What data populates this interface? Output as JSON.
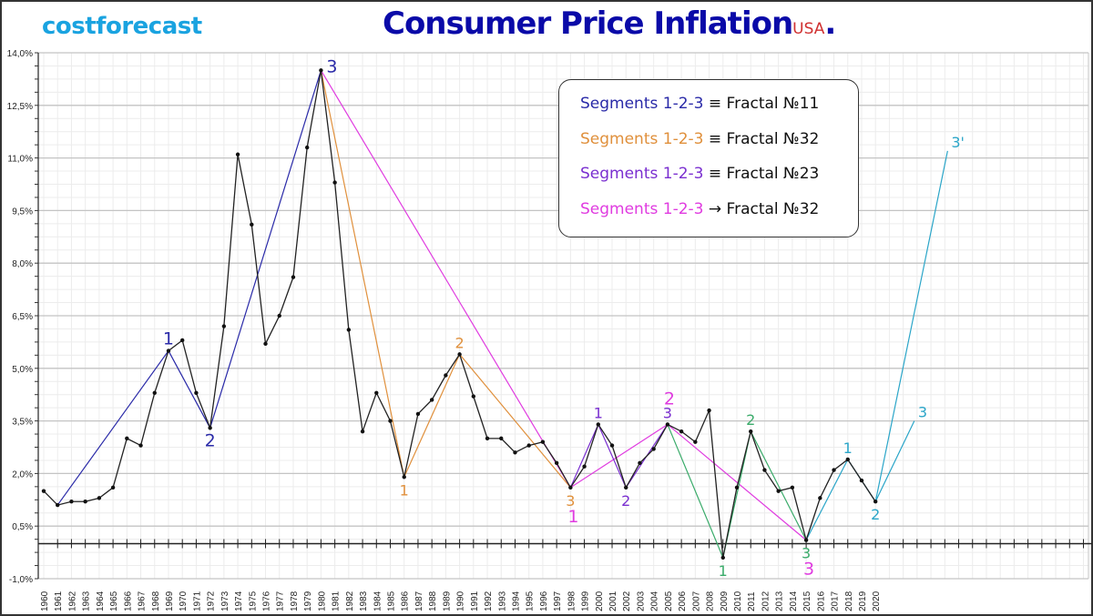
{
  "brand": "costforecast",
  "title": {
    "main": "Consumer Price Inflation",
    "suffix": "USA",
    "dot": "."
  },
  "legend": [
    {
      "segments": "Segments 1-2-3",
      "relation": " ≡ Fractal №11",
      "color": "#2a2aa8"
    },
    {
      "segments": "Segments 1-2-3",
      "relation": " ≡ Fractal №32",
      "color": "#e0903c"
    },
    {
      "segments": "Segments 1-2-3",
      "relation": " ≡ Fractal №23",
      "color": "#7a2fd0"
    },
    {
      "segments": "Segments 1-2-3",
      "relation": " → Fractal №32",
      "color": "#e03ce0"
    }
  ],
  "chart_data": {
    "type": "line",
    "title": "Consumer Price Inflation USA.",
    "ylim": [
      -1.0,
      14.0
    ],
    "yticks": [
      "14,0%",
      "12,5%",
      "11,0%",
      "9,5%",
      "8,0%",
      "6,5%",
      "5,0%",
      "3,5%",
      "2,0%",
      "0,5%",
      "-1,0%"
    ],
    "ytick_values": [
      14.0,
      12.5,
      11.0,
      9.5,
      8.0,
      6.5,
      5.0,
      3.5,
      2.0,
      0.5,
      -1.0
    ],
    "xlim": [
      1960,
      2035
    ],
    "grid": true,
    "series": [
      {
        "color": "#222222",
        "x": [
          1960,
          1961,
          1962,
          1963,
          1964,
          1965,
          1966,
          1967,
          1968,
          1969,
          1970,
          1971,
          1972,
          1973,
          1974,
          1975,
          1976,
          1977,
          1978,
          1979,
          1980,
          1981,
          1982,
          1983,
          1984,
          1985,
          1986,
          1987,
          1988,
          1989,
          1990,
          1991,
          1992,
          1993,
          1994,
          1995,
          1996,
          1997,
          1998,
          1999,
          2000,
          2001,
          2002,
          2003,
          2004,
          2005,
          2006,
          2007,
          2008,
          2009,
          2010,
          2011,
          2012,
          2013,
          2014,
          2015,
          2016,
          2017,
          2018,
          2019,
          2020
        ],
        "y": [
          1.5,
          1.1,
          1.2,
          1.2,
          1.3,
          1.6,
          3.0,
          2.8,
          4.3,
          5.5,
          5.8,
          4.3,
          3.3,
          6.2,
          11.1,
          9.1,
          5.7,
          6.5,
          7.6,
          11.3,
          13.5,
          10.3,
          6.1,
          3.2,
          4.3,
          3.5,
          1.9,
          3.7,
          4.1,
          4.8,
          5.4,
          4.2,
          3.0,
          3.0,
          2.6,
          2.8,
          2.9,
          2.3,
          1.6,
          2.2,
          3.4,
          2.8,
          1.6,
          2.3,
          2.7,
          3.4,
          3.2,
          2.9,
          3.8,
          -0.4,
          1.6,
          3.2,
          2.1,
          1.5,
          1.6,
          0.1,
          1.3,
          2.1,
          2.4,
          1.8,
          1.2
        ]
      }
    ],
    "overlays": [
      {
        "color": "#2a2aa8",
        "points": [
          [
            1961,
            1.1
          ],
          [
            1969,
            5.5
          ],
          [
            1972,
            3.3
          ],
          [
            1980,
            13.5
          ]
        ],
        "labels": [
          {
            "text": "1",
            "x": 1969,
            "y": 5.5,
            "pos": "above",
            "big": true
          },
          {
            "text": "2",
            "x": 1972,
            "y": 3.3,
            "pos": "below",
            "big": true
          },
          {
            "text": "3",
            "x": 1980,
            "y": 13.5,
            "pos": "right",
            "big": true
          }
        ]
      },
      {
        "color": "#e0903c",
        "points": [
          [
            1980,
            13.5
          ],
          [
            1986,
            1.9
          ],
          [
            1990,
            5.4
          ],
          [
            1998,
            1.6
          ]
        ],
        "labels": [
          {
            "text": "1",
            "x": 1986,
            "y": 1.9,
            "pos": "below"
          },
          {
            "text": "2",
            "x": 1990,
            "y": 5.4,
            "pos": "above"
          },
          {
            "text": "3",
            "x": 1998,
            "y": 1.6,
            "pos": "below"
          }
        ]
      },
      {
        "color": "#e03ce0",
        "points": [
          [
            1980,
            13.5
          ],
          [
            1998,
            1.6
          ],
          [
            2005,
            3.4
          ],
          [
            2015,
            0.1
          ]
        ],
        "labels": [
          {
            "text": "1",
            "x": 1998,
            "y": 1.6,
            "pos": "below2",
            "big": true
          },
          {
            "text": "2",
            "x": 2005,
            "y": 3.4,
            "pos": "above2",
            "big": true
          },
          {
            "text": "3",
            "x": 2015,
            "y": 0.1,
            "pos": "below2",
            "big": true
          }
        ]
      },
      {
        "color": "#7a2fd0",
        "points": [
          [
            1998,
            1.6
          ],
          [
            2000,
            3.4
          ],
          [
            2002,
            1.6
          ],
          [
            2005,
            3.4
          ]
        ],
        "labels": [
          {
            "text": "1",
            "x": 2000,
            "y": 3.4,
            "pos": "above"
          },
          {
            "text": "2",
            "x": 2002,
            "y": 1.6,
            "pos": "below"
          },
          {
            "text": "3",
            "x": 2005,
            "y": 3.4,
            "pos": "above"
          }
        ]
      },
      {
        "color": "#3aab6a",
        "points": [
          [
            2005,
            3.4
          ],
          [
            2009,
            -0.4
          ],
          [
            2011,
            3.2
          ],
          [
            2015,
            0.1
          ]
        ],
        "labels": [
          {
            "text": "1",
            "x": 2009,
            "y": -0.4,
            "pos": "below"
          },
          {
            "text": "2",
            "x": 2011,
            "y": 3.2,
            "pos": "above"
          },
          {
            "text": "3",
            "x": 2015,
            "y": 0.1,
            "pos": "below"
          }
        ]
      },
      {
        "color": "#2aa5c8",
        "points": [
          [
            2015,
            0.1
          ],
          [
            2018,
            2.4
          ],
          [
            2020,
            1.2
          ],
          [
            2022.8,
            3.5
          ]
        ],
        "labels": [
          {
            "text": "1",
            "x": 2018,
            "y": 2.4,
            "pos": "above"
          },
          {
            "text": "2",
            "x": 2020,
            "y": 1.2,
            "pos": "below"
          },
          {
            "text": "3",
            "x": 2022.8,
            "y": 3.5,
            "pos": "aboveright"
          }
        ]
      },
      {
        "color": "#2aa5c8",
        "points": [
          [
            2020,
            1.2
          ],
          [
            2025.2,
            11.2
          ]
        ],
        "labels": [
          {
            "text": "3'",
            "x": 2025.2,
            "y": 11.2,
            "pos": "aboveright"
          }
        ]
      }
    ]
  }
}
